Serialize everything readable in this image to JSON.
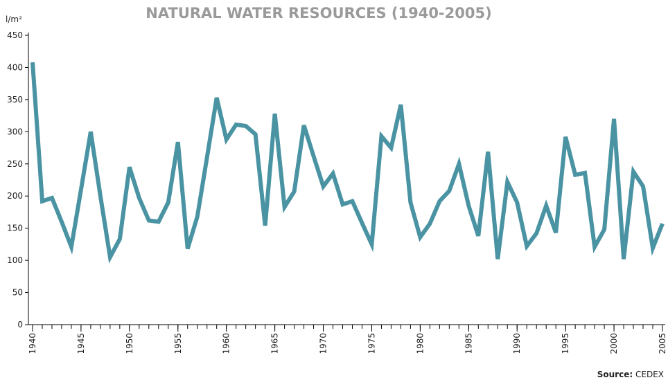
{
  "chart_data": {
    "type": "line",
    "title": "NATURAL WATER RESOURCES (1940-2005)",
    "y_label": "l/m²",
    "source_label": "Source:",
    "source": "CEDEX",
    "x": [
      1940,
      1941,
      1942,
      1943,
      1944,
      1945,
      1946,
      1947,
      1948,
      1949,
      1950,
      1951,
      1952,
      1953,
      1954,
      1955,
      1956,
      1957,
      1958,
      1959,
      1960,
      1961,
      1962,
      1963,
      1964,
      1965,
      1966,
      1967,
      1968,
      1969,
      1970,
      1971,
      1972,
      1973,
      1974,
      1975,
      1976,
      1977,
      1978,
      1979,
      1980,
      1981,
      1982,
      1983,
      1984,
      1985,
      1986,
      1987,
      1988,
      1989,
      1990,
      1991,
      1992,
      1993,
      1994,
      1995,
      1996,
      1997,
      1998,
      1999,
      2000,
      2001,
      2002,
      2003,
      2004,
      2005
    ],
    "series": [
      {
        "name": "Natural water resources",
        "color": "#4a93a3",
        "values": [
          408,
          192,
          197,
          160,
          121,
          210,
          300,
          200,
          105,
          133,
          245,
          197,
          162,
          160,
          190,
          284,
          118,
          168,
          260,
          353,
          288,
          311,
          309,
          296,
          154,
          328,
          183,
          207,
          310,
          262,
          215,
          235,
          187,
          192,
          158,
          125,
          293,
          275,
          342,
          190,
          136,
          157,
          192,
          208,
          250,
          185,
          138,
          269,
          102,
          222,
          190,
          122,
          142,
          185,
          143,
          292,
          233,
          236,
          121,
          148,
          320,
          102,
          238,
          215,
          119,
          157
        ]
      }
    ],
    "xlim": [
      1940,
      2005
    ],
    "xticks": [
      1940,
      1945,
      1950,
      1955,
      1960,
      1965,
      1970,
      1975,
      1980,
      1985,
      1990,
      1995,
      2000,
      2005
    ],
    "ylim": [
      0,
      450
    ],
    "yticks": [
      0,
      50,
      100,
      150,
      200,
      250,
      300,
      350,
      400,
      450
    ]
  }
}
